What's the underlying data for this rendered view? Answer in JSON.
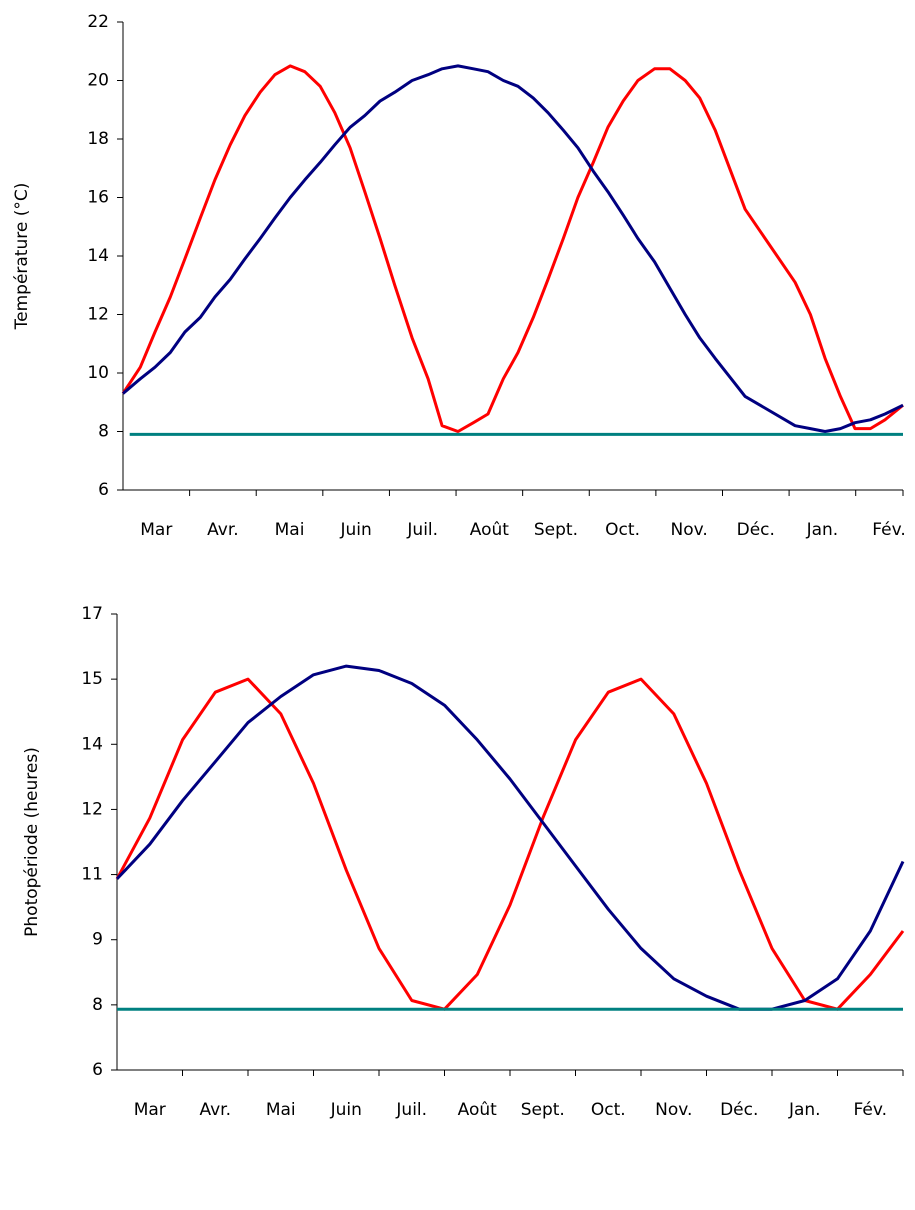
{
  "chart_data": [
    {
      "type": "line",
      "ylabel": "Température (°C)",
      "categories": [
        "Mar",
        "Avr.",
        "Mai",
        "Juin",
        "Juil.",
        "Août",
        "Sept.",
        "Oct.",
        "Nov.",
        "Déc.",
        "Jan.",
        "Fév."
      ],
      "x": [
        0,
        0.26,
        0.48,
        0.71,
        0.93,
        1.16,
        1.38,
        1.61,
        1.83,
        2.06,
        2.28,
        2.51,
        2.73,
        2.96,
        3.18,
        3.41,
        3.63,
        3.86,
        4.08,
        4.34,
        4.58,
        4.79,
        5.03,
        5.26,
        5.48,
        5.71,
        5.93,
        6.16,
        6.38,
        6.61,
        6.83,
        7.06,
        7.28,
        7.51,
        7.73,
        7.98,
        8.21,
        8.44,
        8.66,
        8.89,
        9.34,
        10.09,
        10.32,
        10.54,
        10.77,
        10.99,
        11.22,
        11.44,
        11.71
      ],
      "xlim": [
        0,
        11.71
      ],
      "ylim": [
        6,
        22
      ],
      "yticks": [
        6,
        8,
        10,
        12,
        14,
        16,
        18,
        20,
        22
      ],
      "series": [
        {
          "color": "#ff0000",
          "values": [
            9.3,
            10.2,
            11.4,
            12.6,
            13.9,
            15.3,
            16.6,
            17.8,
            18.8,
            19.6,
            20.2,
            20.5,
            20.3,
            19.8,
            18.9,
            17.7,
            16.2,
            14.6,
            13.0,
            11.2,
            9.8,
            8.2,
            8.0,
            8.3,
            8.6,
            9.8,
            10.7,
            11.9,
            13.2,
            14.6,
            16.0,
            17.2,
            18.4,
            19.3,
            20.0,
            20.4,
            20.4,
            20.0,
            19.4,
            18.3,
            15.6,
            13.1,
            12.0,
            10.5,
            9.2,
            8.1,
            8.1,
            8.4,
            8.9
          ]
        },
        {
          "color": "#000080",
          "values": [
            9.3,
            9.8,
            10.2,
            10.7,
            11.4,
            11.9,
            12.6,
            13.2,
            13.9,
            14.6,
            15.3,
            16.0,
            16.6,
            17.2,
            17.8,
            18.4,
            18.8,
            19.3,
            19.6,
            20.0,
            20.2,
            20.4,
            20.5,
            20.4,
            20.3,
            20.0,
            19.8,
            19.4,
            18.9,
            18.3,
            17.7,
            16.9,
            16.2,
            15.4,
            14.6,
            13.8,
            12.9,
            12.0,
            11.2,
            10.5,
            9.2,
            8.2,
            8.1,
            8.0,
            8.1,
            8.3,
            8.4,
            8.6,
            8.9
          ]
        },
        {
          "color": "#008080",
          "x": [
            0.1,
            11.71
          ],
          "values": [
            7.9,
            7.9
          ]
        }
      ]
    },
    {
      "type": "line",
      "ylabel": "Photopériode (heures)",
      "categories": [
        "Mar",
        "Avr.",
        "Mai",
        "Juin",
        "Juil.",
        "Août",
        "Sept.",
        "Oct.",
        "Nov.",
        "Déc.",
        "Jan.",
        "Fév."
      ],
      "x": [
        0,
        0.5,
        1,
        1.5,
        2,
        2.5,
        3,
        3.5,
        4,
        4.5,
        5,
        5.5,
        6,
        6.5,
        7,
        7.5,
        8,
        8.5,
        9,
        9.5,
        10,
        10.5,
        11,
        11.5,
        12
      ],
      "xlim": [
        0,
        12
      ],
      "ylim": [
        6,
        16.5
      ],
      "yticks": [
        6,
        {
          "value": 7.5,
          "label": "8"
        },
        9,
        {
          "value": 10.5,
          "label": "11"
        },
        12,
        {
          "value": 13.5,
          "label": "14"
        },
        15,
        {
          "value": 16.5,
          "label": "17"
        }
      ],
      "series": [
        {
          "color": "#ff0000",
          "values": [
            10.4,
            11.8,
            13.6,
            14.7,
            15.0,
            14.2,
            12.6,
            10.6,
            8.8,
            7.6,
            7.4,
            8.2,
            9.8,
            11.8,
            13.6,
            14.7,
            15.0,
            14.2,
            12.6,
            10.6,
            8.8,
            7.6,
            7.4,
            8.2,
            9.2
          ]
        },
        {
          "color": "#000080",
          "values": [
            10.4,
            11.2,
            12.2,
            13.1,
            14.0,
            14.6,
            15.1,
            15.3,
            15.2,
            14.9,
            14.4,
            13.6,
            12.7,
            11.7,
            10.7,
            9.7,
            8.8,
            8.1,
            7.7,
            7.4,
            7.4,
            7.6,
            8.1,
            9.2,
            10.8
          ]
        },
        {
          "color": "#008080",
          "x": [
            0,
            12
          ],
          "values": [
            7.4,
            7.4
          ]
        }
      ]
    }
  ]
}
